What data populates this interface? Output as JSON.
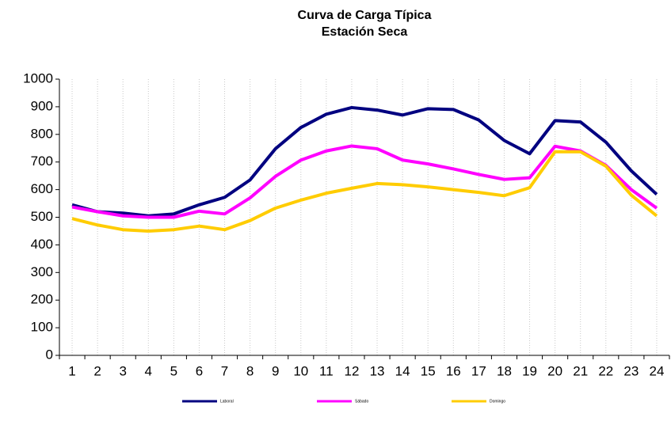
{
  "chart_data": {
    "type": "line",
    "title": "Curva de Carga Típica",
    "subtitle": "Estación Seca",
    "categories": [
      "1",
      "2",
      "3",
      "4",
      "5",
      "6",
      "7",
      "8",
      "9",
      "10",
      "11",
      "12",
      "13",
      "14",
      "15",
      "16",
      "17",
      "18",
      "19",
      "20",
      "21",
      "22",
      "23",
      "24"
    ],
    "series": [
      {
        "name": "Laboral",
        "color": "#000080",
        "values": [
          545,
          520,
          515,
          505,
          512,
          545,
          572,
          635,
          748,
          825,
          873,
          897,
          888,
          870,
          893,
          890,
          852,
          778,
          730,
          850,
          845,
          772,
          668,
          583
        ]
      },
      {
        "name": "Sábado",
        "color": "#ff00ff",
        "values": [
          537,
          520,
          505,
          500,
          500,
          522,
          512,
          570,
          648,
          707,
          740,
          758,
          748,
          707,
          693,
          675,
          655,
          637,
          643,
          757,
          740,
          688,
          600,
          533
        ]
      },
      {
        "name": "Domingo",
        "color": "#ffcc00",
        "values": [
          495,
          472,
          455,
          450,
          455,
          468,
          455,
          488,
          533,
          562,
          587,
          605,
          622,
          618,
          610,
          600,
          590,
          578,
          607,
          737,
          737,
          685,
          580,
          505
        ]
      }
    ],
    "ylim": [
      0,
      1000
    ],
    "yticks": [
      0,
      100,
      200,
      300,
      400,
      500,
      600,
      700,
      800,
      900,
      1000
    ],
    "grid": "x",
    "legend": "bottom"
  }
}
